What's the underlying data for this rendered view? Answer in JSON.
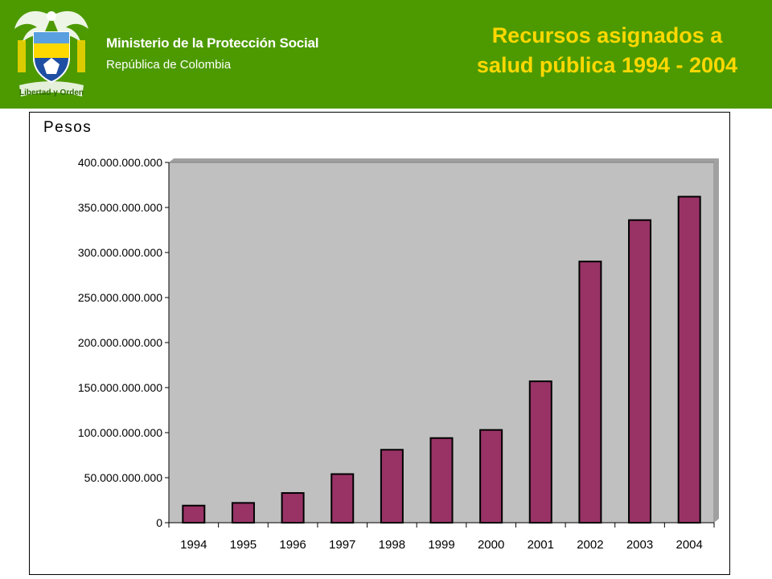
{
  "header": {
    "org_name": "Ministerio de la Protección Social",
    "org_country": "República de Colombia",
    "title_line1": "Recursos asignados a",
    "title_line2": "salud pública 1994 - 2004",
    "emblem_text": "Libertad y Orden",
    "colors": {
      "band": "#4d9a00",
      "title": "#ffd800",
      "text": "#ffffff"
    }
  },
  "chart_data": {
    "type": "bar",
    "ylabel": "Pesos",
    "categories": [
      "1994",
      "1995",
      "1996",
      "1997",
      "1998",
      "1999",
      "2000",
      "2001",
      "2002",
      "2003",
      "2004"
    ],
    "series": [
      {
        "values": [
          19000000000,
          22000000000,
          33000000000,
          54000000000,
          81000000000,
          94000000000,
          103000000000,
          157000000000,
          290000000000,
          336000000000,
          362000000000
        ],
        "color": "#993366"
      }
    ],
    "ylim": [
      0,
      400000000000
    ],
    "yticks": [
      0,
      50000000000,
      100000000000,
      150000000000,
      200000000000,
      250000000000,
      300000000000,
      350000000000,
      400000000000
    ],
    "ytick_labels": [
      "0",
      "50.000.000.000",
      "100.000.000.000",
      "150.000.000.000",
      "200.000.000.000",
      "250.000.000.000",
      "300.000.000.000",
      "350.000.000.000",
      "400.000.000.000"
    ],
    "plot_background": "#c0c0c0",
    "grid": false,
    "legend": "none"
  }
}
